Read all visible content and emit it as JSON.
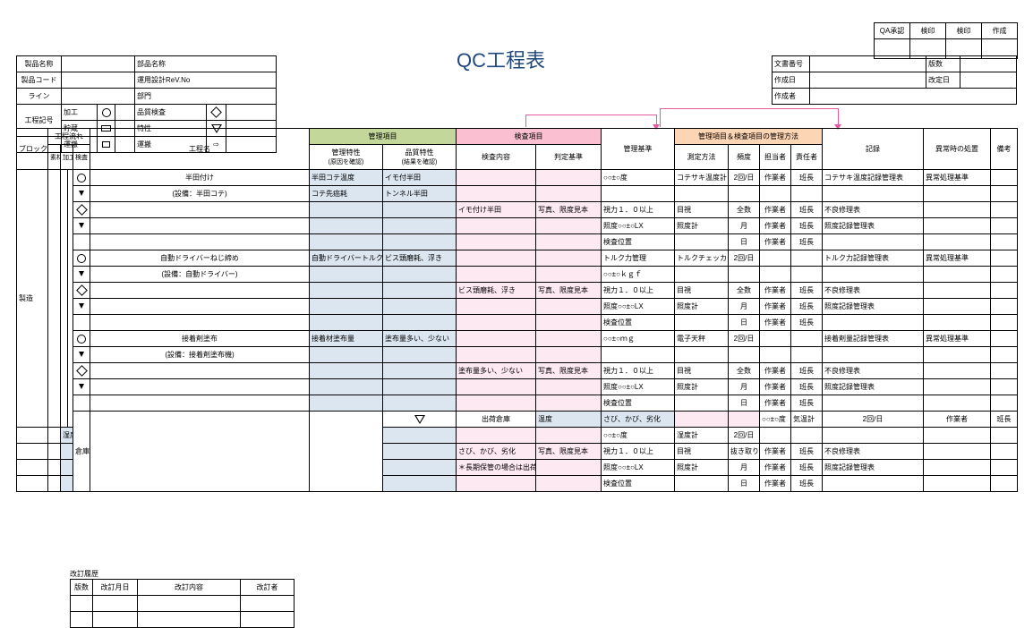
{
  "title": "QC工程表",
  "approval": {
    "h1": "QA承認",
    "h2": "検印",
    "h3": "検印",
    "h4": "作成"
  },
  "docBox": {
    "r1l": "文書番号",
    "r1r": "版数",
    "r2l": "作成日",
    "r2r": "改定日",
    "r3l": "作成者"
  },
  "prod": {
    "r1l": "製品名称",
    "r1c": "",
    "r1r": "部品名称",
    "r2l": "製品コード",
    "r2r": "運用設計ReV.No",
    "r3l": "ライン",
    "r3r": "部門",
    "r4l": "工程記号",
    "p1": "加工",
    "p2": "品質検査",
    "p3": "貯蔵",
    "p4": "運搬",
    "q2": "特性",
    "q3": "運搬"
  },
  "legend": {
    "s1l": "加工",
    "s2l": "品質検査",
    "s3l": "貯蔵",
    "s4l": "運搬"
  },
  "headers": {
    "flow": "工程流れ",
    "block": "ブロック名",
    "c_sozai": "素材",
    "c_kakou": "加工",
    "c_kensa": "検査",
    "procName": "工程名",
    "kanri": "管理項目",
    "kanriChar": "管理特性",
    "kanriSub": "(原因を確認)",
    "hinsitsu": "品質特性",
    "hinsituSub": "(結果を確認)",
    "kensa": "検査項目",
    "kensaNaiyo": "検査内容",
    "hantei": "判定基準",
    "kanriKijun": "管理基準",
    "houhou": "管理項目＆検査項目の管理方法",
    "sokutei": "測定方法",
    "hindo": "頻度",
    "tantou": "担当者",
    "sekinin": "責任者",
    "kiroku": "記録",
    "ijou": "異常時の処置",
    "bikou": "備考"
  },
  "rows": [
    {
      "block": "製造",
      "sym": "circ",
      "proc": "半田付け",
      "procSub": "(設備：半田コテ)",
      "kanriChar": "半田コテ温度",
      "kanriChar2": "コテ先癌耗",
      "hinsitsu": "イモ付半田",
      "hinsitsu2": "トンネル半田",
      "kensaN": "",
      "hantei": "",
      "kijun": "○○±○度",
      "sokutei": "コテサキ温度計",
      "hindo": "2回/日",
      "tantou": "作業者",
      "sekinin": "班長",
      "kiroku": "コテサキ温度記録管理表",
      "ijou": "異常処理基準"
    },
    {
      "sym": "diam",
      "kensaN": "イモ付け半田",
      "hantei": "写真、限度見本",
      "kijun": "視力１．０以上",
      "sokutei": "目視",
      "hindo": "全数",
      "tantou": "作業者",
      "sekinin": "班長",
      "kiroku": "不良修理表"
    },
    {
      "kijun": "照度○○±○LX",
      "sokutei": "照度計",
      "hindo": "月",
      "tantou": "作業者",
      "sekinin": "班長",
      "kiroku": "照度記録管理表"
    },
    {
      "kijun": "検査位置",
      "hindo": "日",
      "tantou": "作業者",
      "sekinin": "班長"
    },
    {
      "sym": "circ",
      "proc": "自動ドライバーねじ締め",
      "procSub": "(設備：自動ドライバー)",
      "kanriChar": "自動ドライバートルク力",
      "hinsitsu": "ビス頭磨耗、浮き",
      "kijun": "トルク力管理",
      "kijun2": "○○±○ｋｇｆ",
      "sokutei": "トルクチェッカー",
      "hindo": "2回/日",
      "kiroku": "トルク力記録管理表",
      "ijou": "異常処理基準"
    },
    {
      "sym": "diam",
      "kensaN": "ビス頭磨耗、浮き",
      "hantei": "写真、限度見本",
      "kijun": "視力１．０以上",
      "sokutei": "目視",
      "hindo": "全数",
      "tantou": "作業者",
      "sekinin": "班長",
      "kiroku": "不良修理表"
    },
    {
      "kijun": "照度○○±○LX",
      "sokutei": "照度計",
      "hindo": "月",
      "tantou": "作業者",
      "sekinin": "班長",
      "kiroku": "照度記録管理表"
    },
    {
      "kijun": "検査位置",
      "hindo": "日",
      "tantou": "作業者",
      "sekinin": "班長"
    },
    {
      "sym": "circ",
      "proc": "接着剤塗布",
      "procSub": "(設備：接着剤塗布機)",
      "kanriChar": "接着材塗布量",
      "hinsitsu": "塗布量多い、少ない",
      "kijun": "○○±○ｍｇ",
      "sokutei": "電子天秤",
      "hindo": "2回/日",
      "kiroku": "接着剤量記録管理表",
      "ijou": "異常処理基準"
    },
    {
      "sym": "diam",
      "kensaN": "塗布量多い、少ない",
      "hantei": "写真、限度見本",
      "kijun": "視力１．０以上",
      "sokutei": "目視",
      "hindo": "全数",
      "tantou": "作業者",
      "sekinin": "班長",
      "kiroku": "不良修理表"
    },
    {
      "kijun": "照度○○±○LX",
      "sokutei": "照度計",
      "hindo": "月",
      "tantou": "作業者",
      "sekinin": "班長",
      "kiroku": "照度記録管理表"
    },
    {
      "kijun": "検査位置",
      "hindo": "日",
      "tantou": "作業者",
      "sekinin": "班長"
    },
    {
      "block": "倉庫",
      "sym": "tri",
      "proc": "出荷倉庫",
      "kanriChar": "温度",
      "kanriChar2": "湿度",
      "hinsitsu": "さび、かび、劣化",
      "kijun": "○○±○度",
      "kijun2": "○○±○度",
      "sokutei": "気温計",
      "sokutei2": "湿度計",
      "hindo": "2回/日",
      "hindo2": "2回/日",
      "tantou": "作業者",
      "sekinin": "班長",
      "kiroku": "温度湿度記録管理表",
      "ijou": "異常処理基準"
    },
    {
      "kensaN": "さび、かび、劣化",
      "kensaN2": "＊長期保管の場合は出荷前に点検",
      "hantei": "写真、限度見本",
      "kijun": "視力１．０以上",
      "sokutei": "目視",
      "hindo": "抜き取り",
      "tantou": "作業者",
      "sekinin": "班長",
      "kiroku": "不良修理表"
    },
    {
      "kijun": "照度○○±○LX",
      "sokutei": "照度計",
      "hindo": "月",
      "tantou": "作業者",
      "sekinin": "班長",
      "kiroku": "照度記録管理表"
    },
    {
      "kijun": "検査位置",
      "hindo": "日",
      "tantou": "作業者",
      "sekinin": "班長"
    }
  ],
  "rev": {
    "title": "改訂履歴",
    "h1": "版数",
    "h2": "改訂月日",
    "h3": "改訂内容",
    "h4": "改訂者"
  }
}
